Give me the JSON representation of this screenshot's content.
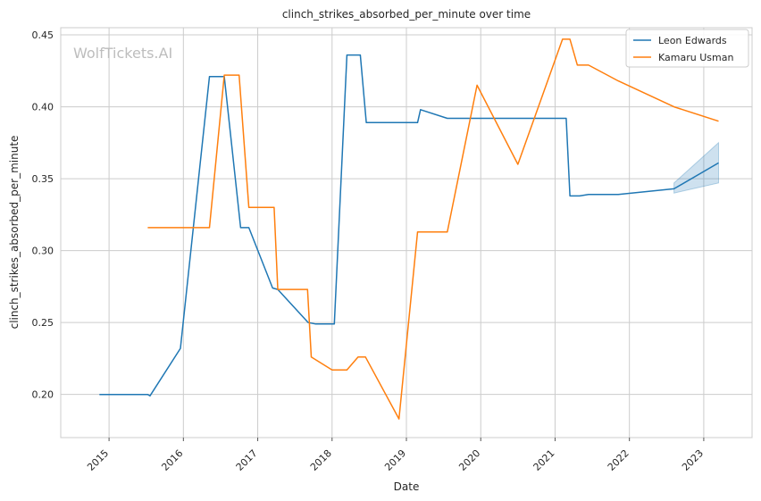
{
  "chart_data": {
    "type": "line",
    "title": "clinch_strikes_absorbed_per_minute over time",
    "xlabel": "Date",
    "ylabel": "clinch_strikes_absorbed_per_minute",
    "watermark": "WolfTickets.AI",
    "xlim": [
      2014.35,
      2023.65
    ],
    "ylim": [
      0.17,
      0.455
    ],
    "x_ticks": [
      2015,
      2016,
      2017,
      2018,
      2019,
      2020,
      2021,
      2022,
      2023
    ],
    "x_tick_labels": [
      "2015",
      "2016",
      "2017",
      "2018",
      "2019",
      "2020",
      "2021",
      "2022",
      "2023"
    ],
    "y_ticks": [
      0.2,
      0.25,
      0.3,
      0.35,
      0.4,
      0.45
    ],
    "y_tick_labels": [
      "0.20",
      "0.25",
      "0.30",
      "0.35",
      "0.40",
      "0.45"
    ],
    "grid": true,
    "legend_position": "top-right",
    "series": [
      {
        "name": "Leon Edwards",
        "color": "#1f77b4",
        "x": [
          2014.87,
          2015.52,
          2015.55,
          2015.96,
          2016.35,
          2016.55,
          2016.77,
          2016.88,
          2017.2,
          2017.27,
          2017.68,
          2017.78,
          2018.03,
          2018.2,
          2018.38,
          2018.46,
          2018.7,
          2019.15,
          2019.19,
          2019.55,
          2020.0,
          2020.5,
          2021.1,
          2021.15,
          2021.2,
          2021.33,
          2021.45,
          2021.85,
          2022.6,
          2023.2
        ],
        "y": [
          0.2,
          0.2,
          0.199,
          0.232,
          0.421,
          0.421,
          0.316,
          0.316,
          0.274,
          0.273,
          0.25,
          0.249,
          0.249,
          0.436,
          0.436,
          0.389,
          0.389,
          0.389,
          0.398,
          0.392,
          0.392,
          0.392,
          0.392,
          0.392,
          0.338,
          0.338,
          0.339,
          0.339,
          0.343,
          0.361
        ]
      },
      {
        "name": "Kamaru Usman",
        "color": "#ff7f0e",
        "x": [
          2015.52,
          2016.35,
          2016.55,
          2016.75,
          2016.88,
          2017.22,
          2017.27,
          2017.67,
          2017.72,
          2018.0,
          2018.2,
          2018.35,
          2018.45,
          2018.9,
          2019.15,
          2019.55,
          2019.95,
          2020.5,
          2021.1,
          2021.2,
          2021.3,
          2021.45,
          2021.85,
          2022.6,
          2023.2
        ],
        "y": [
          0.316,
          0.316,
          0.422,
          0.422,
          0.33,
          0.33,
          0.273,
          0.273,
          0.226,
          0.217,
          0.217,
          0.226,
          0.226,
          0.183,
          0.313,
          0.313,
          0.415,
          0.36,
          0.447,
          0.447,
          0.429,
          0.429,
          0.418,
          0.4,
          0.39
        ]
      }
    ],
    "confidence_band": {
      "series": "Leon Edwards",
      "color": "#1f77b4",
      "x": [
        2022.6,
        2023.2
      ],
      "lower": [
        0.34,
        0.347
      ],
      "upper": [
        0.347,
        0.375
      ]
    }
  }
}
